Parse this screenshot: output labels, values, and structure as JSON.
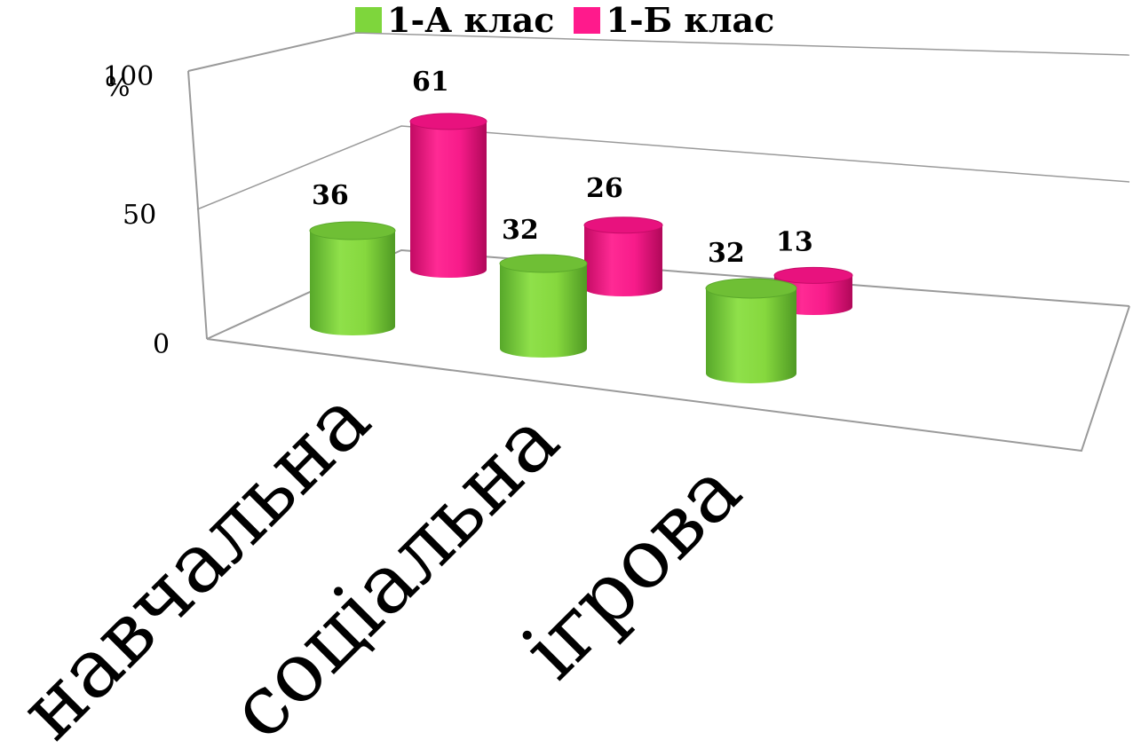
{
  "chart_data": {
    "type": "bar",
    "style": "3d-cylinder",
    "categories": [
      "навчальна",
      "соціальна",
      "ігрова"
    ],
    "series": [
      {
        "name": "1-А клас",
        "values": [
          36,
          32,
          32
        ],
        "color": "#7ed63c"
      },
      {
        "name": "1-Б клас",
        "values": [
          61,
          26,
          13
        ],
        "color": "#ff1a8c"
      }
    ],
    "y_ticks": [
      "0",
      "50",
      "100"
    ],
    "y_unit": "%",
    "ylim": [
      0,
      100
    ],
    "legend_position": "top",
    "grid": true
  }
}
